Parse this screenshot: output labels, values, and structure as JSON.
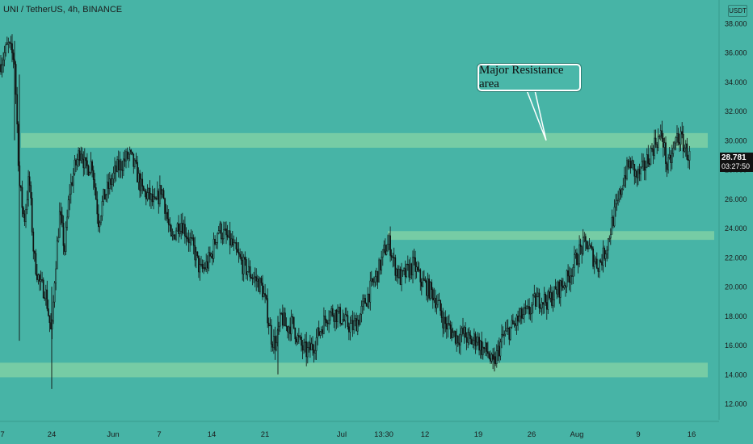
{
  "header": {
    "symbol_title": "UNI / TetherUS, 4h, BINANCE",
    "currency_badge": "USDT"
  },
  "annotation": {
    "text": "Major Resistance area"
  },
  "last_price": {
    "price": "28.781",
    "countdown": "03:27:50"
  },
  "colors": {
    "background": "#47b4a6",
    "zone_fill": "#7fd0a4",
    "candle": "#111111",
    "axis_text": "#1b1b1b"
  },
  "chart_data": {
    "type": "candlestick",
    "timeframe": "4h",
    "exchange": "BINANCE",
    "pair": "UNI / TetherUS",
    "y_axis": {
      "range": [
        11,
        39.5
      ],
      "ticks": [
        "12.000",
        "14.000",
        "16.000",
        "18.000",
        "20.000",
        "22.000",
        "24.000",
        "26.000",
        "28.000",
        "30.000",
        "32.000",
        "34.000",
        "36.000",
        "38.000"
      ]
    },
    "x_axis": {
      "labels": [
        "7",
        "24",
        "Jun",
        "7",
        "14",
        "21",
        "Jul",
        "13:30",
        "12",
        "19",
        "26",
        "Aug",
        "9",
        "16"
      ]
    },
    "zones": [
      {
        "name": "resistance",
        "low": 29.5,
        "high": 30.5
      },
      {
        "name": "mid",
        "low": 23.2,
        "high": 23.8
      },
      {
        "name": "support",
        "low": 13.8,
        "high": 14.8
      }
    ],
    "price_path": [
      [
        0,
        35.2
      ],
      [
        10,
        36.5
      ],
      [
        18,
        35.5
      ],
      [
        24,
        27.0
      ],
      [
        30,
        24.5
      ],
      [
        36,
        27.5
      ],
      [
        42,
        22.0
      ],
      [
        50,
        20.0
      ],
      [
        56,
        19.8
      ],
      [
        64,
        16.5
      ],
      [
        68,
        21.0
      ],
      [
        74,
        25.0
      ],
      [
        80,
        22.5
      ],
      [
        86,
        26.5
      ],
      [
        92,
        28.0
      ],
      [
        100,
        29.5
      ],
      [
        106,
        28.0
      ],
      [
        114,
        28.5
      ],
      [
        122,
        24.5
      ],
      [
        128,
        26.0
      ],
      [
        136,
        27.0
      ],
      [
        144,
        28.0
      ],
      [
        152,
        28.5
      ],
      [
        160,
        29.0
      ],
      [
        168,
        28.0
      ],
      [
        176,
        26.5
      ],
      [
        184,
        26.2
      ],
      [
        192,
        25.5
      ],
      [
        200,
        26.8
      ],
      [
        206,
        25.0
      ],
      [
        212,
        23.0
      ],
      [
        218,
        24.0
      ],
      [
        224,
        24.5
      ],
      [
        232,
        23.5
      ],
      [
        240,
        22.5
      ],
      [
        248,
        21.0
      ],
      [
        256,
        21.5
      ],
      [
        262,
        22.2
      ],
      [
        270,
        24.0
      ],
      [
        278,
        23.5
      ],
      [
        286,
        23.0
      ],
      [
        292,
        22.3
      ],
      [
        300,
        21.5
      ],
      [
        308,
        21.0
      ],
      [
        316,
        20.5
      ],
      [
        324,
        20.0
      ],
      [
        330,
        18.5
      ],
      [
        336,
        16.5
      ],
      [
        342,
        16.0
      ],
      [
        348,
        18.0
      ],
      [
        354,
        17.2
      ],
      [
        362,
        17.5
      ],
      [
        368,
        16.5
      ],
      [
        374,
        15.8
      ],
      [
        380,
        15.5
      ],
      [
        388,
        16.0
      ],
      [
        396,
        17.0
      ],
      [
        404,
        18.0
      ],
      [
        412,
        18.3
      ],
      [
        420,
        18.0
      ],
      [
        428,
        17.5
      ],
      [
        436,
        17.2
      ],
      [
        444,
        17.8
      ],
      [
        452,
        19.0
      ],
      [
        460,
        20.0
      ],
      [
        468,
        21.0
      ],
      [
        476,
        22.5
      ],
      [
        482,
        23.0
      ],
      [
        488,
        21.5
      ],
      [
        496,
        20.5
      ],
      [
        504,
        21.0
      ],
      [
        512,
        21.5
      ],
      [
        520,
        20.5
      ],
      [
        528,
        20.0
      ],
      [
        536,
        19.5
      ],
      [
        544,
        18.5
      ],
      [
        550,
        17.5
      ],
      [
        558,
        17.0
      ],
      [
        566,
        16.5
      ],
      [
        574,
        16.8
      ],
      [
        582,
        16.2
      ],
      [
        590,
        16.5
      ],
      [
        596,
        15.8
      ],
      [
        604,
        15.5
      ],
      [
        610,
        14.5
      ],
      [
        616,
        15.5
      ],
      [
        622,
        16.5
      ],
      [
        630,
        17.0
      ],
      [
        638,
        17.5
      ],
      [
        646,
        18.0
      ],
      [
        654,
        18.2
      ],
      [
        662,
        19.0
      ],
      [
        670,
        19.2
      ],
      [
        678,
        19.0
      ],
      [
        686,
        19.5
      ],
      [
        694,
        20.0
      ],
      [
        702,
        20.5
      ],
      [
        710,
        21.5
      ],
      [
        718,
        22.5
      ],
      [
        726,
        23.0
      ],
      [
        734,
        22.0
      ],
      [
        740,
        21.5
      ],
      [
        746,
        22.0
      ],
      [
        752,
        23.0
      ],
      [
        758,
        24.5
      ],
      [
        764,
        25.5
      ],
      [
        772,
        27.5
      ],
      [
        780,
        28.5
      ],
      [
        788,
        27.5
      ],
      [
        796,
        28.0
      ],
      [
        804,
        29.0
      ],
      [
        812,
        30.0
      ],
      [
        820,
        30.3
      ],
      [
        826,
        28.0
      ],
      [
        832,
        29.0
      ],
      [
        838,
        30.3
      ],
      [
        844,
        30.0
      ],
      [
        850,
        29.2
      ],
      [
        854,
        28.8
      ]
    ]
  }
}
